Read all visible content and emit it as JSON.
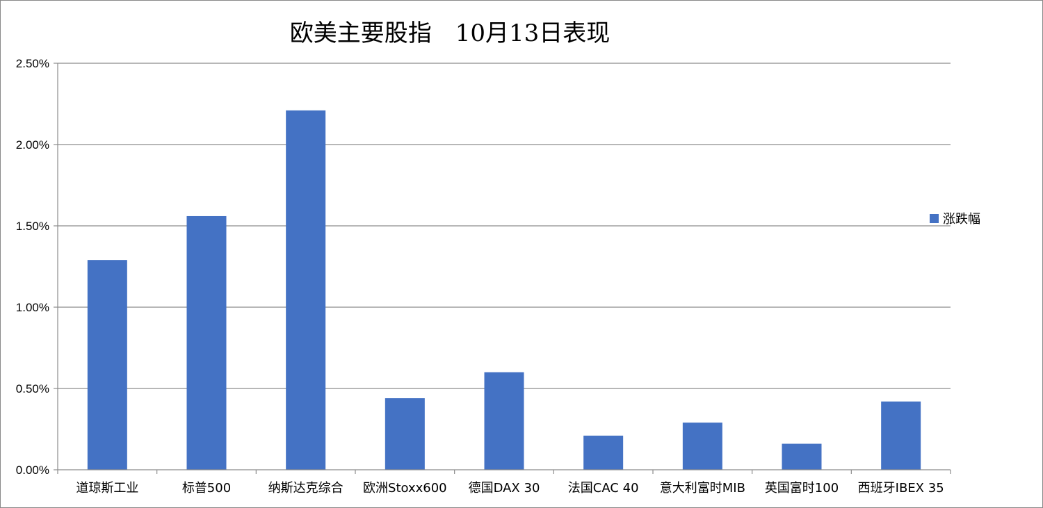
{
  "chart_data": {
    "type": "bar",
    "title": "欧美主要股指　10月13日表现",
    "categories": [
      "道琼斯工业",
      "标普500",
      "纳斯达克综合",
      "欧洲Stoxx600",
      "德国DAX 30",
      "法国CAC 40",
      "意大利富时MIB",
      "英国富时100",
      "西班牙IBEX 35"
    ],
    "series": [
      {
        "name": "涨跌幅",
        "values": [
          0.0129,
          0.0156,
          0.0221,
          0.0044,
          0.006,
          0.0021,
          0.0029,
          0.0016,
          0.0042
        ],
        "color": "#4472C4"
      }
    ],
    "ylim": [
      0,
      0.025
    ],
    "yticks": [
      "0.00%",
      "0.50%",
      "1.00%",
      "1.50%",
      "2.00%",
      "2.50%"
    ],
    "grid": true,
    "legend_position": "right"
  }
}
